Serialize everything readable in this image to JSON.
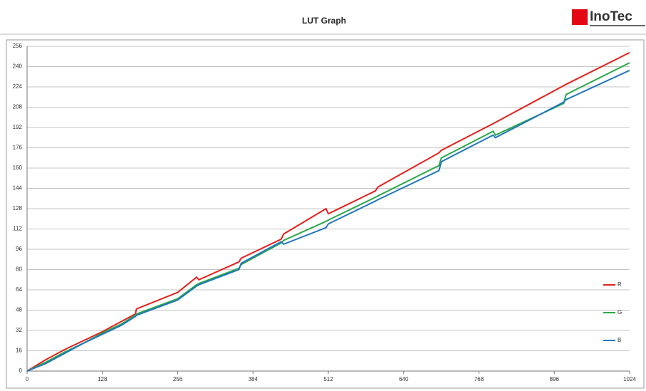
{
  "logo": "InoTec",
  "chart_data": {
    "type": "line",
    "title": "LUT Graph",
    "x": [
      0,
      32,
      64,
      96,
      128,
      160,
      184,
      186,
      256,
      288,
      292,
      360,
      364,
      432,
      436,
      508,
      512,
      592,
      596,
      700,
      704,
      792,
      796,
      912,
      916,
      1024
    ],
    "series": [
      {
        "name": "R",
        "color": "#e3201b",
        "values": [
          0,
          9,
          17,
          24,
          31,
          39,
          45,
          49,
          62,
          74,
          72,
          86,
          89,
          104,
          108,
          128,
          124,
          142,
          145,
          172,
          174,
          195,
          196,
          225,
          226,
          251
        ]
      },
      {
        "name": "G",
        "color": "#2ca84a",
        "values": [
          0,
          7,
          15,
          22,
          30,
          37,
          44,
          45,
          57,
          68,
          69,
          81,
          84,
          101,
          103,
          118,
          119,
          137,
          138,
          162,
          168,
          189,
          186,
          211,
          218,
          243
        ]
      },
      {
        "name": "B",
        "color": "#2176c0",
        "values": [
          0,
          6,
          14,
          22,
          29,
          36,
          43,
          44,
          56,
          67,
          68,
          80,
          85,
          102,
          100,
          113,
          116,
          134,
          135,
          158,
          165,
          186,
          184,
          212,
          214,
          237
        ]
      }
    ],
    "xlim": [
      0,
      1024
    ],
    "xticks": [
      0,
      128,
      256,
      384,
      512,
      640,
      768,
      896,
      1024
    ],
    "ylim": [
      0,
      256
    ],
    "yticks": [
      0,
      16,
      32,
      48,
      64,
      80,
      96,
      112,
      128,
      144,
      160,
      176,
      192,
      208,
      224,
      240,
      256
    ],
    "grid": true,
    "legend": "right"
  }
}
